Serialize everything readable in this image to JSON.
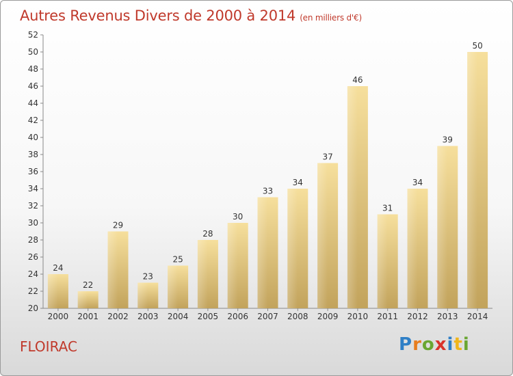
{
  "title": "Autres Revenus Divers de 2000 à 2014",
  "subtitle": "(en milliers d'€)",
  "place": "FLOIRAC",
  "logo": {
    "text": "Proxiti"
  },
  "colors": {
    "title": "#c0392b",
    "bar_light": "#f6df9c",
    "bar_dark": "#c2a35c"
  },
  "chart_data": {
    "type": "bar",
    "categories": [
      "2000",
      "2001",
      "2002",
      "2003",
      "2004",
      "2005",
      "2006",
      "2007",
      "2008",
      "2009",
      "2010",
      "2011",
      "2012",
      "2013",
      "2014"
    ],
    "values": [
      24,
      22,
      29,
      23,
      25,
      28,
      30,
      33,
      34,
      37,
      46,
      31,
      34,
      39,
      50
    ],
    "ylim": [
      20,
      52
    ],
    "yticks": [
      20,
      22,
      24,
      26,
      28,
      30,
      32,
      34,
      36,
      38,
      40,
      42,
      44,
      46,
      48,
      50,
      52
    ],
    "grid": false,
    "data_labels": true
  }
}
